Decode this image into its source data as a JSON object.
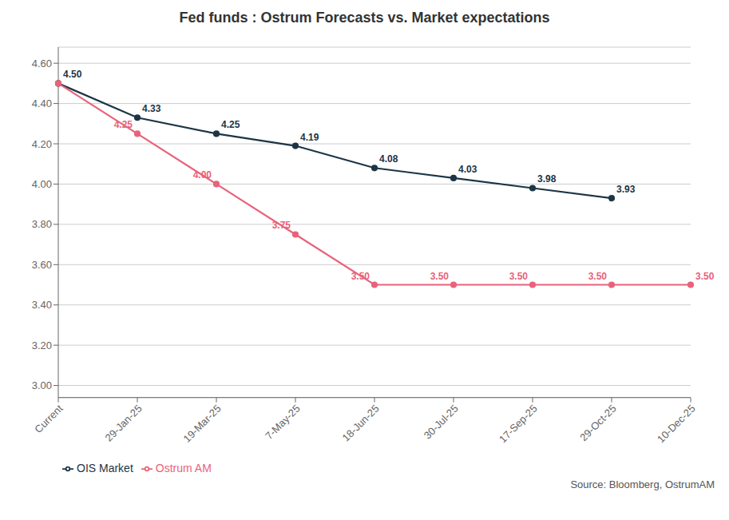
{
  "chart_data": {
    "type": "line",
    "title": "Fed funds : Ostrum Forecasts vs. Market expectations",
    "categories": [
      "Current",
      "29-Jan-25",
      "19-Mar-25",
      "7-May-25",
      "18-Jun-25",
      "30-Jul-25",
      "17-Sep-25",
      "29-Oct-25",
      "10-Dec-25"
    ],
    "series": [
      {
        "name": "OIS Market",
        "color": "#1d3545",
        "marker": "circle",
        "values": [
          4.5,
          4.33,
          4.25,
          4.19,
          4.08,
          4.03,
          3.98,
          3.93,
          null
        ],
        "value_labels": [
          "4.50",
          "4.33",
          "4.25",
          "4.19",
          "4.08",
          "4.03",
          "3.98",
          "3.93",
          null
        ]
      },
      {
        "name": "Ostrum AM",
        "color": "#e8637a",
        "marker": "circle",
        "values": [
          4.5,
          4.25,
          4,
          3.75,
          3.5,
          3.5,
          3.5,
          3.5,
          3.5
        ],
        "value_labels": [
          null,
          "4.25",
          "4.00",
          "3.75",
          "3.50",
          "3.50",
          "3.50",
          "3.50",
          "3.50"
        ]
      }
    ],
    "ylim": [
      2.94,
      4.68
    ],
    "yticks": [
      {
        "value": 3,
        "label": "3.00"
      },
      {
        "value": 3.2,
        "label": "3.20"
      },
      {
        "value": 3.4,
        "label": "3.40"
      },
      {
        "value": 3.6,
        "label": "3.60"
      },
      {
        "value": 3.8,
        "label": "3.80"
      },
      {
        "value": 4,
        "label": "4.00"
      },
      {
        "value": 4.2,
        "label": "4.20"
      },
      {
        "value": 4.4,
        "label": "4.40"
      },
      {
        "value": 4.6,
        "label": "4.60"
      }
    ],
    "grid": true,
    "legend": "lower left",
    "data_labels": true,
    "annotations": [
      "Source: Bloomberg, OstrumAM"
    ]
  }
}
